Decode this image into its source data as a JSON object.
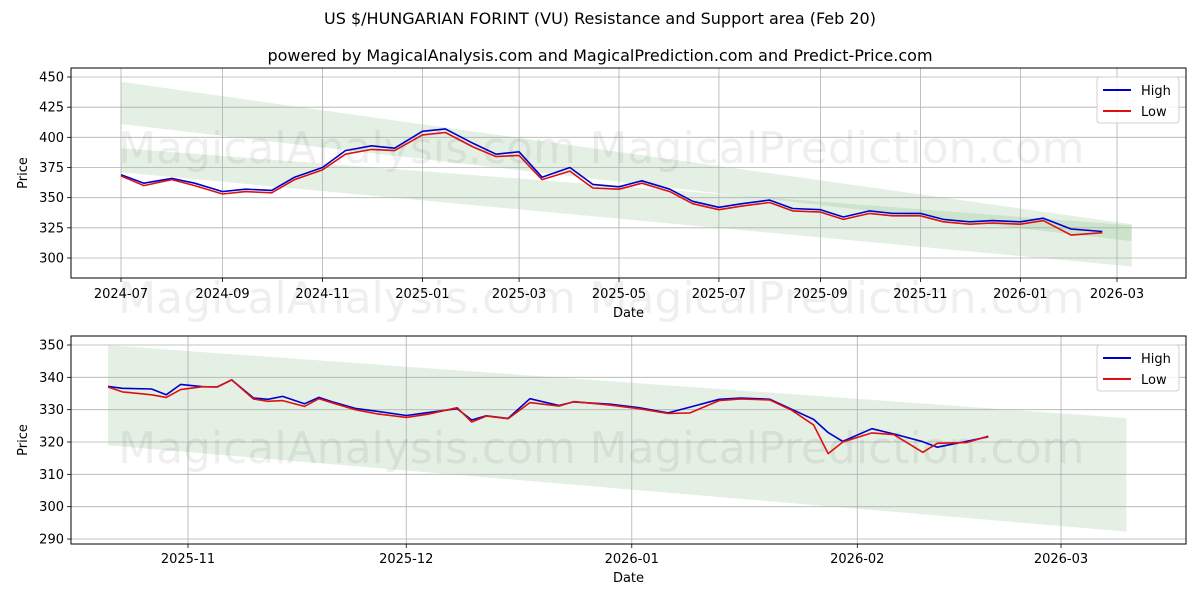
{
  "header": {
    "title": "US $/HUNGARIAN FORINT (VU) Resistance and Support area (Feb 20)",
    "subtitle": "powered by MagicalAnalysis.com and MagicalPrediction.com and Predict-Price.com"
  },
  "watermarks": [
    "MagicalAnalysis.com",
    "MagicalPrediction.com"
  ],
  "colors": {
    "high": "#0000cc",
    "low": "#dd1111",
    "band_light": "#e3f0e3",
    "band_dark": "#cfe6cf",
    "grid": "#b0b0b0"
  },
  "chart_data": [
    {
      "type": "line",
      "title": "Full history",
      "xlabel": "Date",
      "ylabel": "Price",
      "ylim": [
        285,
        455
      ],
      "yticks": [
        300,
        325,
        350,
        375,
        400,
        425,
        450
      ],
      "xticks": [
        "2024-07",
        "2024-09",
        "2024-11",
        "2025-01",
        "2025-03",
        "2025-05",
        "2025-07",
        "2025-09",
        "2025-11",
        "2026-01",
        "2026-03"
      ],
      "grid": true,
      "legend": {
        "position": "upper right",
        "entries": [
          "High",
          "Low"
        ]
      },
      "series": [
        {
          "name": "High",
          "color": "#0000cc",
          "x": [
            "2024-07-01",
            "2024-07-15",
            "2024-08-01",
            "2024-08-15",
            "2024-09-01",
            "2024-09-15",
            "2024-10-01",
            "2024-10-15",
            "2024-11-01",
            "2024-11-15",
            "2024-12-01",
            "2024-12-15",
            "2025-01-01",
            "2025-01-15",
            "2025-02-01",
            "2025-02-15",
            "2025-03-01",
            "2025-03-15",
            "2025-04-01",
            "2025-04-15",
            "2025-05-01",
            "2025-05-15",
            "2025-06-01",
            "2025-06-15",
            "2025-07-01",
            "2025-07-15",
            "2025-08-01",
            "2025-08-15",
            "2025-09-01",
            "2025-09-15",
            "2025-10-01",
            "2025-10-15",
            "2025-11-01",
            "2025-11-15",
            "2025-12-01",
            "2025-12-15",
            "2026-01-01",
            "2026-01-15",
            "2026-02-01",
            "2026-02-20"
          ],
          "values": [
            369,
            362,
            366,
            362,
            355,
            357,
            356,
            367,
            375,
            389,
            393,
            391,
            405,
            407,
            395,
            386,
            388,
            367,
            375,
            361,
            359,
            364,
            357,
            347,
            342,
            345,
            348,
            341,
            340,
            334,
            339,
            337,
            337,
            332,
            330,
            331,
            330,
            333,
            324,
            322
          ]
        },
        {
          "name": "Low",
          "color": "#dd1111",
          "x": [
            "2024-07-01",
            "2024-07-15",
            "2024-08-01",
            "2024-08-15",
            "2024-09-01",
            "2024-09-15",
            "2024-10-01",
            "2024-10-15",
            "2024-11-01",
            "2024-11-15",
            "2024-12-01",
            "2024-12-15",
            "2025-01-01",
            "2025-01-15",
            "2025-02-01",
            "2025-02-15",
            "2025-03-01",
            "2025-03-15",
            "2025-04-01",
            "2025-04-15",
            "2025-05-01",
            "2025-05-15",
            "2025-06-01",
            "2025-06-15",
            "2025-07-01",
            "2025-07-15",
            "2025-08-01",
            "2025-08-15",
            "2025-09-01",
            "2025-09-15",
            "2025-10-01",
            "2025-10-15",
            "2025-11-01",
            "2025-11-15",
            "2025-12-01",
            "2025-12-15",
            "2026-01-01",
            "2026-01-15",
            "2026-02-01",
            "2026-02-20"
          ],
          "values": [
            368,
            360,
            365,
            360,
            353,
            355,
            354,
            365,
            373,
            386,
            390,
            389,
            402,
            404,
            392,
            384,
            385,
            365,
            372,
            358,
            357,
            362,
            355,
            345,
            340,
            343,
            346,
            339,
            338,
            332,
            337,
            335,
            335,
            330,
            328,
            329,
            328,
            331,
            319,
            321
          ]
        }
      ],
      "bands": [
        {
          "name": "Resistance",
          "start": "2024-07-01",
          "end": "2026-03-10",
          "upper": [
            446,
            328
          ],
          "lower": [
            411,
            314
          ]
        },
        {
          "name": "Support",
          "start": "2024-07-01",
          "end": "2026-03-10",
          "upper": [
            391,
            327
          ],
          "lower": [
            371,
            293
          ]
        }
      ]
    },
    {
      "type": "line",
      "title": "Recent detail",
      "xlabel": "Date",
      "ylabel": "Price",
      "ylim": [
        289,
        353
      ],
      "yticks": [
        290,
        300,
        310,
        320,
        330,
        340,
        350
      ],
      "xticks": [
        "2025-11",
        "2025-12",
        "2026-01",
        "2026-02",
        "2026-03"
      ],
      "grid": true,
      "legend": {
        "position": "upper right",
        "entries": [
          "High",
          "Low"
        ]
      },
      "series": [
        {
          "name": "High",
          "color": "#0000cc",
          "x": [
            "2025-10-21",
            "2025-10-23",
            "2025-10-27",
            "2025-10-29",
            "2025-10-31",
            "2025-11-03",
            "2025-11-05",
            "2025-11-07",
            "2025-11-10",
            "2025-11-12",
            "2025-11-14",
            "2025-11-17",
            "2025-11-19",
            "2025-11-21",
            "2025-11-24",
            "2025-11-27",
            "2025-12-01",
            "2025-12-04",
            "2025-12-08",
            "2025-12-10",
            "2025-12-12",
            "2025-12-15",
            "2025-12-18",
            "2025-12-22",
            "2025-12-24",
            "2025-12-29",
            "2026-01-02",
            "2026-01-06",
            "2026-01-09",
            "2026-01-13",
            "2026-01-16",
            "2026-01-20",
            "2026-01-23",
            "2026-01-26",
            "2026-01-28",
            "2026-01-30",
            "2026-02-03",
            "2026-02-06",
            "2026-02-10",
            "2026-02-12",
            "2026-02-16",
            "2026-02-19"
          ],
          "values": [
            337.2,
            336.6,
            336.4,
            334.6,
            337.8,
            337.1,
            337.0,
            339.2,
            333.6,
            333.2,
            334.1,
            331.8,
            333.8,
            332.3,
            330.4,
            329.5,
            328.2,
            329.1,
            330.3,
            326.8,
            328.1,
            327.3,
            333.4,
            331.3,
            332.4,
            331.7,
            330.6,
            329.0,
            330.8,
            333.2,
            333.6,
            333.2,
            330.1,
            327.0,
            322.9,
            320.2,
            324.1,
            322.5,
            320.1,
            318.4,
            320.2,
            321.6
          ]
        },
        {
          "name": "Low",
          "color": "#dd1111",
          "x": [
            "2025-10-21",
            "2025-10-23",
            "2025-10-27",
            "2025-10-29",
            "2025-10-31",
            "2025-11-03",
            "2025-11-05",
            "2025-11-07",
            "2025-11-10",
            "2025-11-12",
            "2025-11-14",
            "2025-11-17",
            "2025-11-19",
            "2025-11-21",
            "2025-11-24",
            "2025-11-27",
            "2025-12-01",
            "2025-12-04",
            "2025-12-08",
            "2025-12-10",
            "2025-12-12",
            "2025-12-15",
            "2025-12-18",
            "2025-12-22",
            "2025-12-24",
            "2025-12-29",
            "2026-01-02",
            "2026-01-06",
            "2026-01-09",
            "2026-01-13",
            "2026-01-16",
            "2026-01-20",
            "2026-01-23",
            "2026-01-26",
            "2026-01-28",
            "2026-01-30",
            "2026-02-03",
            "2026-02-06",
            "2026-02-10",
            "2026-02-12",
            "2026-02-16",
            "2026-02-19"
          ],
          "values": [
            337.0,
            335.5,
            334.6,
            333.8,
            336.2,
            337.1,
            337.0,
            339.2,
            333.3,
            332.6,
            332.8,
            331.0,
            333.4,
            332.0,
            330.0,
            328.7,
            327.6,
            328.6,
            330.6,
            326.2,
            328.0,
            327.2,
            332.2,
            331.1,
            332.5,
            331.4,
            330.3,
            328.8,
            329.0,
            332.8,
            333.3,
            333.0,
            329.8,
            325.3,
            316.4,
            320.0,
            322.8,
            322.3,
            316.8,
            319.6,
            319.8,
            321.8
          ]
        }
      ],
      "bands": [
        {
          "name": "Resistance",
          "start": "2025-10-21",
          "end": "2026-03-10",
          "upper": [
            349.9,
            327.4
          ],
          "lower": [
            341.8,
            322.1
          ]
        },
        {
          "name": "Support",
          "start": "2025-10-21",
          "end": "2026-03-10",
          "upper": [
            326.2,
            313.3
          ],
          "lower": [
            319.0,
            292.3
          ]
        }
      ]
    }
  ]
}
